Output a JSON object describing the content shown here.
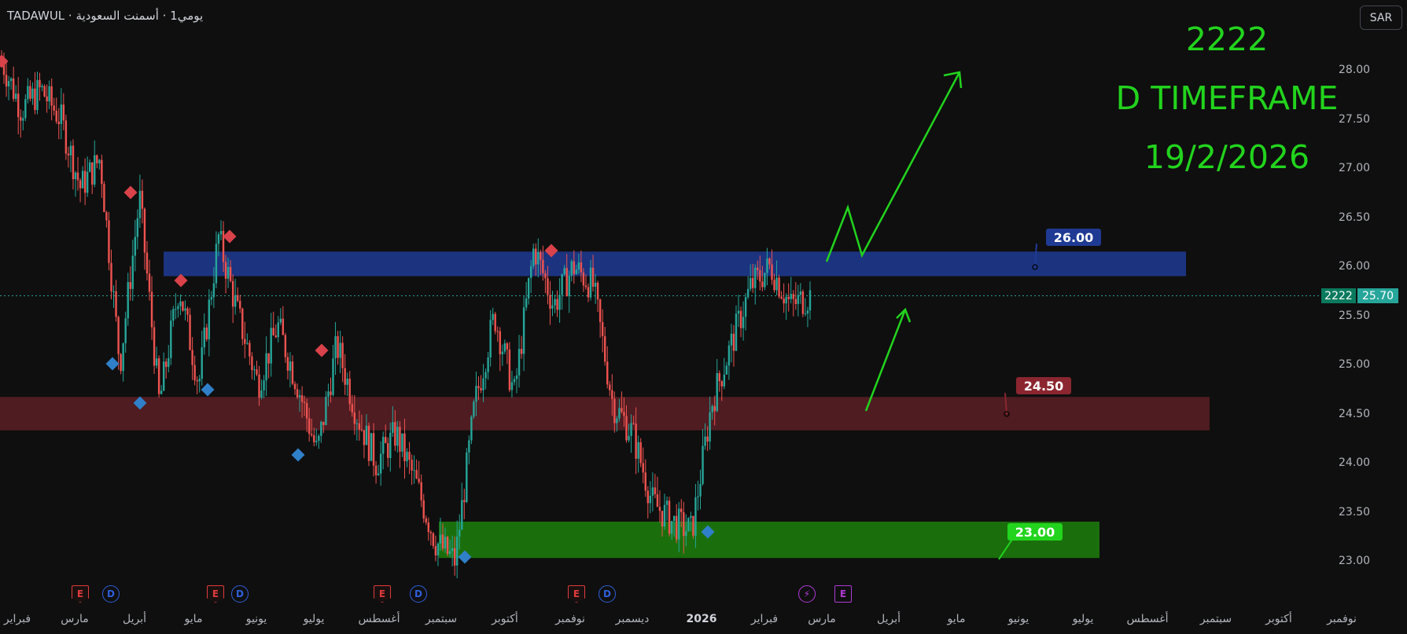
{
  "header": {
    "title": "TADAWUL · يومي1 · أسمنت السعودية"
  },
  "currency": "SAR",
  "annotations": {
    "line1": "2222",
    "line2": "D TIMEFRAME",
    "line3": "19/2/2026"
  },
  "price_tags": {
    "symbol": "2222",
    "last": "25.70"
  },
  "chart_data": {
    "type": "candlestick",
    "yticks": [
      "28.00",
      "27.50",
      "27.00",
      "26.50",
      "26.00",
      "25.50",
      "25.00",
      "24.50",
      "24.00",
      "23.50",
      "23.00"
    ],
    "ylim": [
      22.8,
      28.5
    ],
    "xticks": [
      {
        "label": "فبراير"
      },
      {
        "label": "مارس"
      },
      {
        "label": "أبريل"
      },
      {
        "label": "مايو"
      },
      {
        "label": "يونيو"
      },
      {
        "label": "يوليو"
      },
      {
        "label": "أغسطس"
      },
      {
        "label": "سبتمبر"
      },
      {
        "label": "أكتوبر"
      },
      {
        "label": "نوفمبر"
      },
      {
        "label": "ديسمبر"
      },
      {
        "label": "2026"
      },
      {
        "label": "فبراير"
      },
      {
        "label": "مارس"
      },
      {
        "label": "أبريل"
      },
      {
        "label": "مايو"
      },
      {
        "label": "يونيو"
      },
      {
        "label": "يوليو"
      },
      {
        "label": "أغسطس"
      },
      {
        "label": "سبتمبر"
      },
      {
        "label": "أكتوبر"
      },
      {
        "label": "نوفمبر"
      }
    ],
    "zones": [
      {
        "label": "26.00",
        "low": 25.9,
        "high": 26.15,
        "color": "#1f3a93"
      },
      {
        "label": "24.50",
        "low": 24.33,
        "high": 24.67,
        "color": "#5a1f24"
      },
      {
        "label": "23.00",
        "low": 23.03,
        "high": 23.4,
        "color": "#1c7a0c"
      }
    ],
    "last_price": 25.7,
    "path": [
      28.1,
      27.6,
      27.8,
      27.5,
      26.8,
      27.1,
      25.0,
      26.7,
      24.6,
      25.8,
      24.8,
      26.3,
      25.5,
      24.8,
      25.4,
      24.8,
      24.1,
      25.2,
      24.5,
      24.0,
      24.3,
      23.8,
      23.2,
      23.0,
      24.6,
      25.5,
      24.7,
      26.2,
      25.6,
      26.0,
      25.8,
      24.6,
      24.3,
      23.6,
      23.4,
      23.3,
      24.6,
      25.2,
      25.8,
      26.0,
      25.6,
      25.7
    ]
  }
}
